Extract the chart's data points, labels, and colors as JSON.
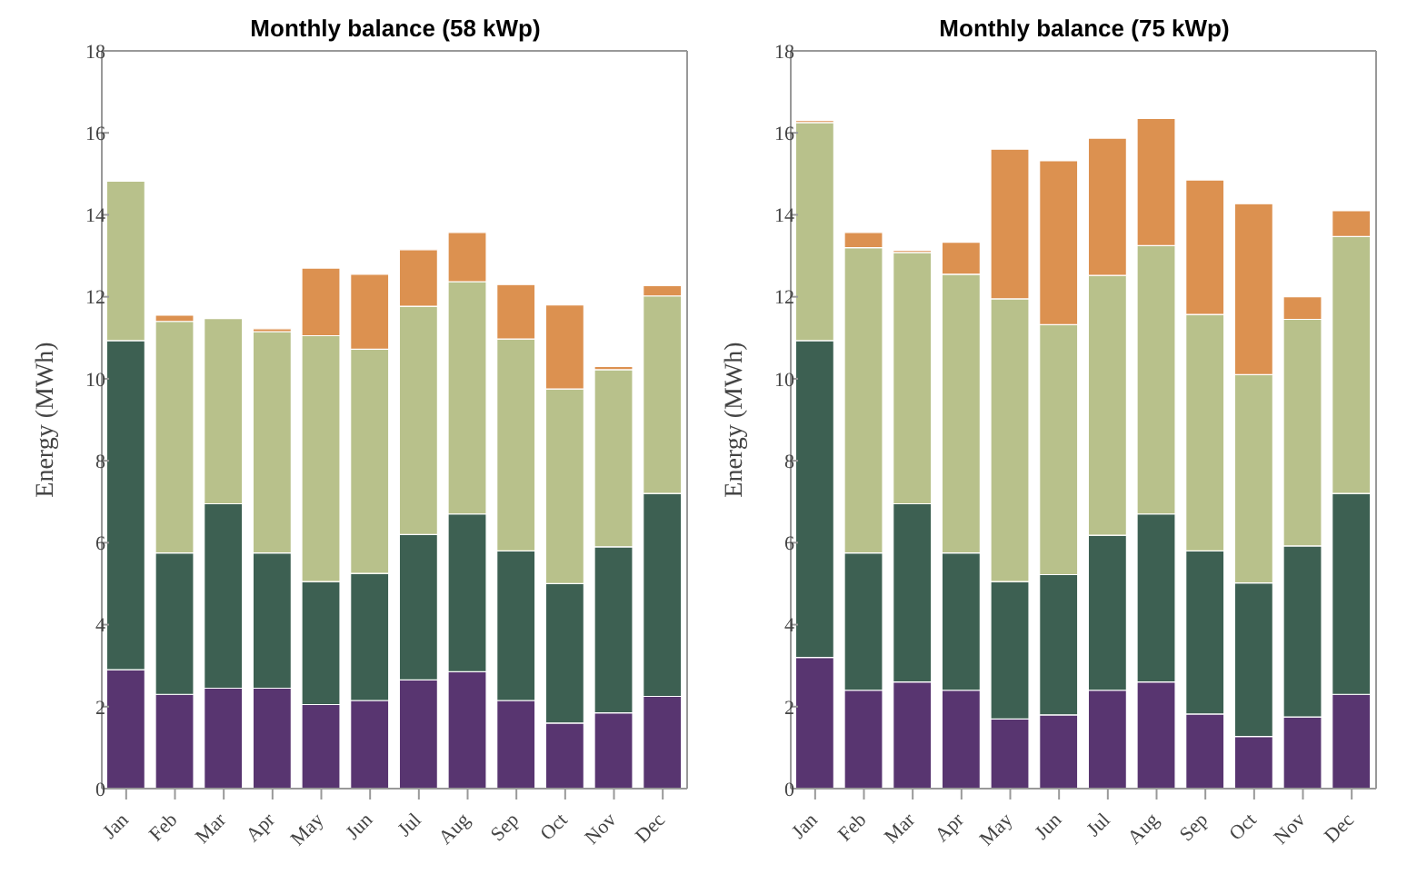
{
  "chart_data": [
    {
      "type": "bar",
      "title": "Monthly balance (58 kWp)",
      "ylabel": "Energy (MWh)",
      "stacked": true,
      "categories": [
        "Jan",
        "Feb",
        "Mar",
        "Apr",
        "May",
        "Jun",
        "Jul",
        "Aug",
        "Sep",
        "Oct",
        "Nov",
        "Dec"
      ],
      "ylim": [
        0,
        18
      ],
      "yticks": [
        0,
        2,
        4,
        6,
        8,
        10,
        12,
        14,
        16,
        18
      ],
      "grid": false,
      "legend": false,
      "series": [
        {
          "color": "#583570",
          "values": [
            2.9,
            2.3,
            2.45,
            2.45,
            2.05,
            2.15,
            2.65,
            2.85,
            2.15,
            1.6,
            1.85,
            2.25
          ]
        },
        {
          "color": "#3d6052",
          "values": [
            8.03,
            3.45,
            4.5,
            3.3,
            3.0,
            3.1,
            3.55,
            3.85,
            3.65,
            3.4,
            4.05,
            4.95
          ]
        },
        {
          "color": "#b8c18b",
          "values": [
            3.89,
            5.65,
            4.52,
            5.4,
            6.0,
            5.47,
            5.57,
            5.67,
            5.17,
            4.75,
            4.32,
            4.82
          ]
        },
        {
          "color": "#dc9150",
          "values": [
            0,
            0.15,
            0,
            0.07,
            1.65,
            1.83,
            1.38,
            1.2,
            1.33,
            2.05,
            0.08,
            0.25
          ]
        }
      ]
    },
    {
      "type": "bar",
      "title": "Monthly balance (75 kWp)",
      "ylabel": "Energy (MWh)",
      "stacked": true,
      "categories": [
        "Jan",
        "Feb",
        "Mar",
        "Apr",
        "May",
        "Jun",
        "Jul",
        "Aug",
        "Sep",
        "Oct",
        "Nov",
        "Dec"
      ],
      "ylim": [
        0,
        18
      ],
      "yticks": [
        0,
        2,
        4,
        6,
        8,
        10,
        12,
        14,
        16,
        18
      ],
      "grid": false,
      "legend": false,
      "series": [
        {
          "color": "#583570",
          "values": [
            3.2,
            2.4,
            2.6,
            2.4,
            1.7,
            1.8,
            2.4,
            2.6,
            1.82,
            1.27,
            1.75,
            2.3
          ]
        },
        {
          "color": "#3d6052",
          "values": [
            7.73,
            3.35,
            4.35,
            3.35,
            3.35,
            3.42,
            3.78,
            4.1,
            3.98,
            3.75,
            4.17,
            4.9
          ]
        },
        {
          "color": "#b8c18b",
          "values": [
            5.32,
            7.45,
            6.13,
            6.8,
            6.9,
            6.1,
            6.34,
            6.55,
            5.77,
            5.08,
            5.53,
            6.27
          ]
        },
        {
          "color": "#dc9150",
          "values": [
            0.05,
            0.37,
            0.05,
            0.78,
            3.65,
            4.0,
            3.35,
            3.1,
            3.28,
            4.17,
            0.55,
            0.63
          ]
        }
      ]
    }
  ]
}
